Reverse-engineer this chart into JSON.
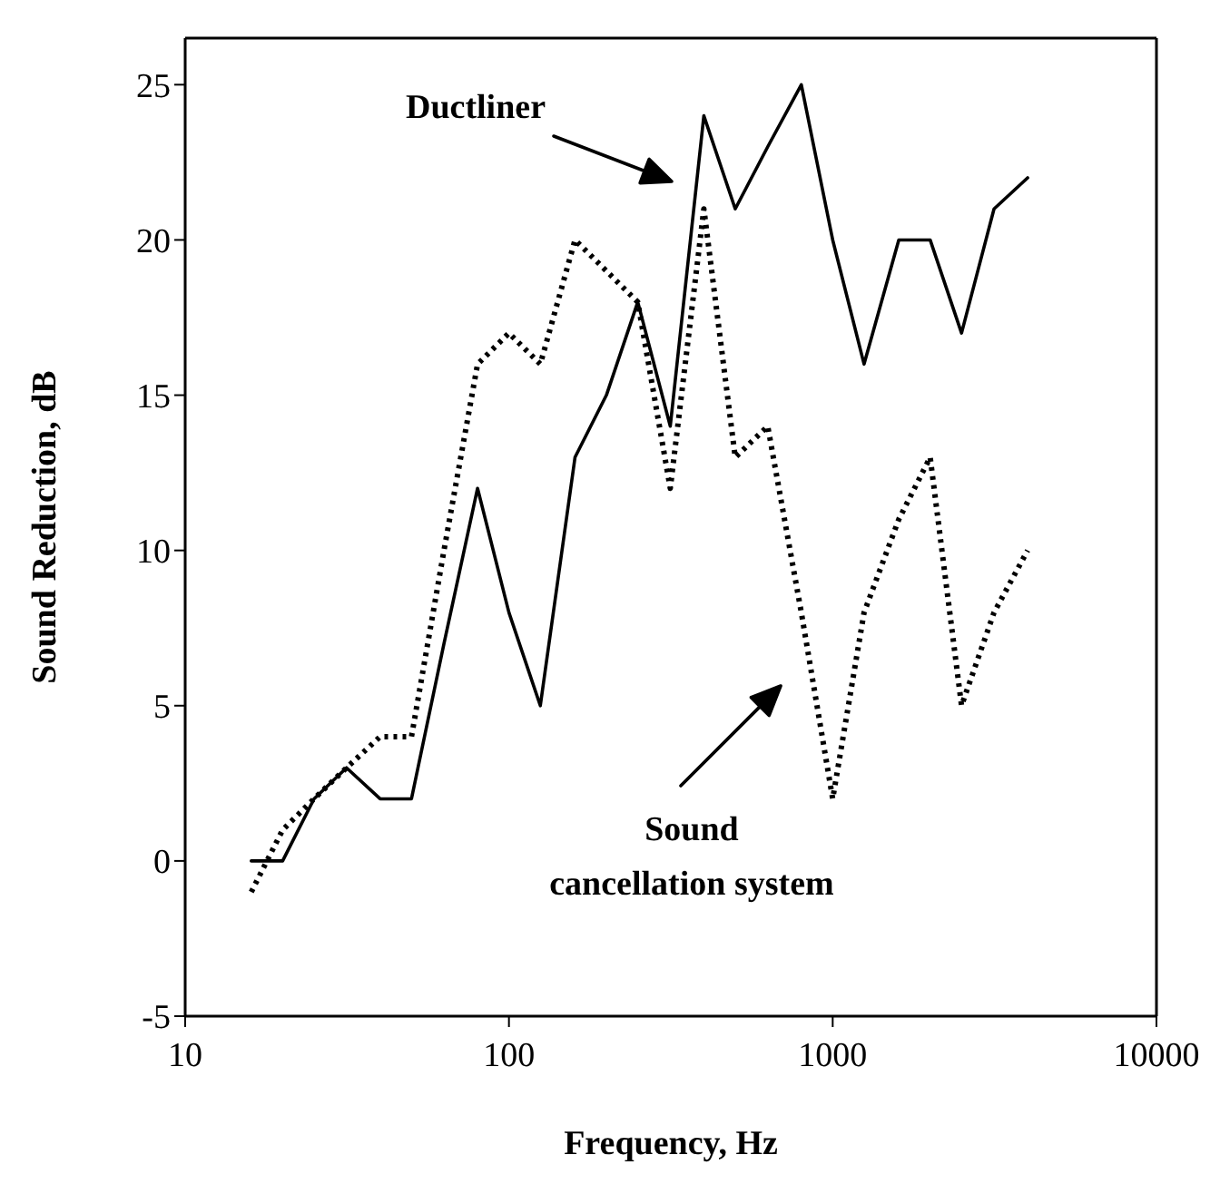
{
  "chart_data": {
    "type": "line",
    "xlabel": "Frequency, Hz",
    "ylabel": "Sound Reduction, dB",
    "log": "x",
    "x": [
      16,
      20,
      25,
      31.5,
      40,
      50,
      63,
      80,
      100,
      125,
      160,
      200,
      250,
      315,
      400,
      500,
      630,
      800,
      1000,
      1250,
      1600,
      2000,
      2500,
      3150,
      4000
    ],
    "series": [
      {
        "color": "#000000",
        "line_style": "solid",
        "values": [
          0,
          0,
          2,
          3,
          2,
          2,
          7,
          12,
          8,
          5,
          13,
          15,
          18,
          14,
          24,
          21,
          23,
          25,
          20,
          16,
          20,
          20,
          17,
          21,
          22
        ]
      },
      {
        "color": "#000000",
        "line_style": "dotted",
        "values": [
          -1,
          1,
          2,
          3,
          4,
          4,
          10,
          16,
          17,
          16,
          20,
          19,
          18,
          12,
          21,
          13,
          14,
          8,
          2,
          8,
          11,
          13,
          5,
          8,
          10
        ]
      }
    ],
    "xlim": [
      10,
      10000
    ],
    "xticks": [
      10,
      100,
      1000,
      10000
    ],
    "ylim": [
      -5,
      26.5
    ],
    "yticks": [
      -5,
      0,
      5,
      10,
      15,
      20,
      25
    ],
    "annotations": [
      "Ductliner",
      "Sound\ncancellation system"
    ]
  }
}
